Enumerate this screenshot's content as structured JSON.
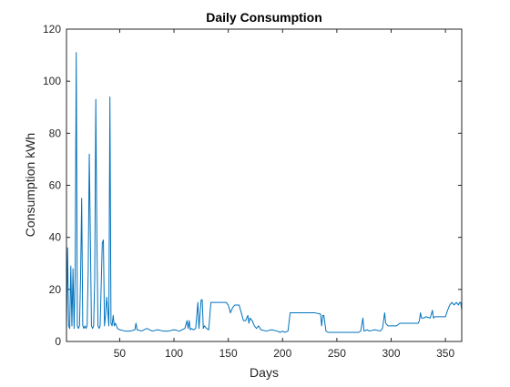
{
  "chart_data": {
    "type": "line",
    "title": "Daily Consumption",
    "xlabel": "Days",
    "ylabel": "Consumption kWh",
    "xlim": [
      1,
      365
    ],
    "ylim": [
      0,
      120
    ],
    "xticks": [
      50,
      100,
      150,
      200,
      250,
      300,
      350
    ],
    "yticks": [
      0,
      20,
      40,
      60,
      80,
      100,
      120
    ],
    "grid": false,
    "series": [
      {
        "color": "#0072BD",
        "points": [
          [
            1,
            5
          ],
          [
            2,
            36
          ],
          [
            3,
            6
          ],
          [
            4,
            5
          ],
          [
            5,
            29
          ],
          [
            6,
            6
          ],
          [
            7,
            28
          ],
          [
            8,
            5
          ],
          [
            9,
            26
          ],
          [
            10,
            111
          ],
          [
            11,
            6
          ],
          [
            12,
            5
          ],
          [
            13,
            6
          ],
          [
            14,
            25
          ],
          [
            15,
            55
          ],
          [
            16,
            6
          ],
          [
            17,
            5
          ],
          [
            18,
            6
          ],
          [
            19,
            5
          ],
          [
            20,
            6
          ],
          [
            21,
            27
          ],
          [
            22,
            72
          ],
          [
            23,
            40
          ],
          [
            24,
            6
          ],
          [
            25,
            5
          ],
          [
            26,
            6
          ],
          [
            27,
            24
          ],
          [
            28,
            93
          ],
          [
            29,
            40
          ],
          [
            30,
            6
          ],
          [
            31,
            5
          ],
          [
            32,
            6
          ],
          [
            33,
            22
          ],
          [
            34,
            38
          ],
          [
            35,
            39
          ],
          [
            36,
            6
          ],
          [
            37,
            10
          ],
          [
            38,
            17
          ],
          [
            39,
            12
          ],
          [
            40,
            6
          ],
          [
            41,
            94
          ],
          [
            42,
            7
          ],
          [
            43,
            6
          ],
          [
            44,
            10
          ],
          [
            45,
            6
          ],
          [
            46,
            7
          ],
          [
            47,
            6
          ],
          [
            48,
            5
          ],
          [
            50,
            4.5
          ],
          [
            55,
            4
          ],
          [
            60,
            4
          ],
          [
            64,
            4.5
          ],
          [
            65,
            7
          ],
          [
            66,
            4.5
          ],
          [
            70,
            4
          ],
          [
            75,
            5
          ],
          [
            80,
            4
          ],
          [
            85,
            4.5
          ],
          [
            90,
            4
          ],
          [
            95,
            4
          ],
          [
            100,
            4.5
          ],
          [
            105,
            4
          ],
          [
            110,
            5
          ],
          [
            112,
            8
          ],
          [
            113,
            5
          ],
          [
            114,
            8
          ],
          [
            115,
            4.5
          ],
          [
            116,
            5
          ],
          [
            118,
            4.5
          ],
          [
            120,
            5
          ],
          [
            122,
            15
          ],
          [
            123,
            5
          ],
          [
            125,
            16
          ],
          [
            126,
            16
          ],
          [
            127,
            5
          ],
          [
            128,
            6
          ],
          [
            130,
            5
          ],
          [
            132,
            4.5
          ],
          [
            134,
            15
          ],
          [
            140,
            15
          ],
          [
            148,
            15
          ],
          [
            150,
            14
          ],
          [
            152,
            11
          ],
          [
            154,
            13
          ],
          [
            156,
            14
          ],
          [
            158,
            14
          ],
          [
            160,
            14
          ],
          [
            162,
            11
          ],
          [
            164,
            8
          ],
          [
            166,
            8
          ],
          [
            168,
            10
          ],
          [
            169,
            7
          ],
          [
            170,
            9
          ],
          [
            172,
            8
          ],
          [
            174,
            6
          ],
          [
            176,
            5
          ],
          [
            178,
            6
          ],
          [
            180,
            4.5
          ],
          [
            185,
            4
          ],
          [
            190,
            4.5
          ],
          [
            195,
            4
          ],
          [
            198,
            3.5
          ],
          [
            200,
            4
          ],
          [
            202,
            3.5
          ],
          [
            205,
            4
          ],
          [
            207,
            11
          ],
          [
            210,
            11
          ],
          [
            215,
            11
          ],
          [
            220,
            11
          ],
          [
            225,
            11
          ],
          [
            230,
            11
          ],
          [
            235,
            10.5
          ],
          [
            236,
            6
          ],
          [
            237,
            10
          ],
          [
            238,
            10
          ],
          [
            240,
            4
          ],
          [
            242,
            3.5
          ],
          [
            245,
            3.5
          ],
          [
            250,
            3.5
          ],
          [
            255,
            3.5
          ],
          [
            260,
            3.5
          ],
          [
            265,
            3.5
          ],
          [
            270,
            3.5
          ],
          [
            272,
            4
          ],
          [
            274,
            9
          ],
          [
            275,
            4
          ],
          [
            278,
            4.5
          ],
          [
            280,
            4
          ],
          [
            285,
            4.5
          ],
          [
            290,
            4
          ],
          [
            292,
            5
          ],
          [
            294,
            11
          ],
          [
            295,
            7
          ],
          [
            297,
            6
          ],
          [
            300,
            6
          ],
          [
            305,
            6
          ],
          [
            308,
            7
          ],
          [
            312,
            7
          ],
          [
            318,
            7
          ],
          [
            322,
            7
          ],
          [
            325,
            7
          ],
          [
            326,
            8
          ],
          [
            327,
            11
          ],
          [
            328,
            9
          ],
          [
            330,
            9
          ],
          [
            332,
            9.5
          ],
          [
            336,
            9
          ],
          [
            338,
            12
          ],
          [
            339,
            9
          ],
          [
            340,
            9.5
          ],
          [
            345,
            9.5
          ],
          [
            350,
            9.5
          ],
          [
            352,
            12
          ],
          [
            354,
            14
          ],
          [
            356,
            15
          ],
          [
            358,
            14
          ],
          [
            360,
            15
          ],
          [
            362,
            14
          ],
          [
            363,
            15
          ],
          [
            364,
            15
          ],
          [
            365,
            12
          ]
        ]
      }
    ]
  }
}
